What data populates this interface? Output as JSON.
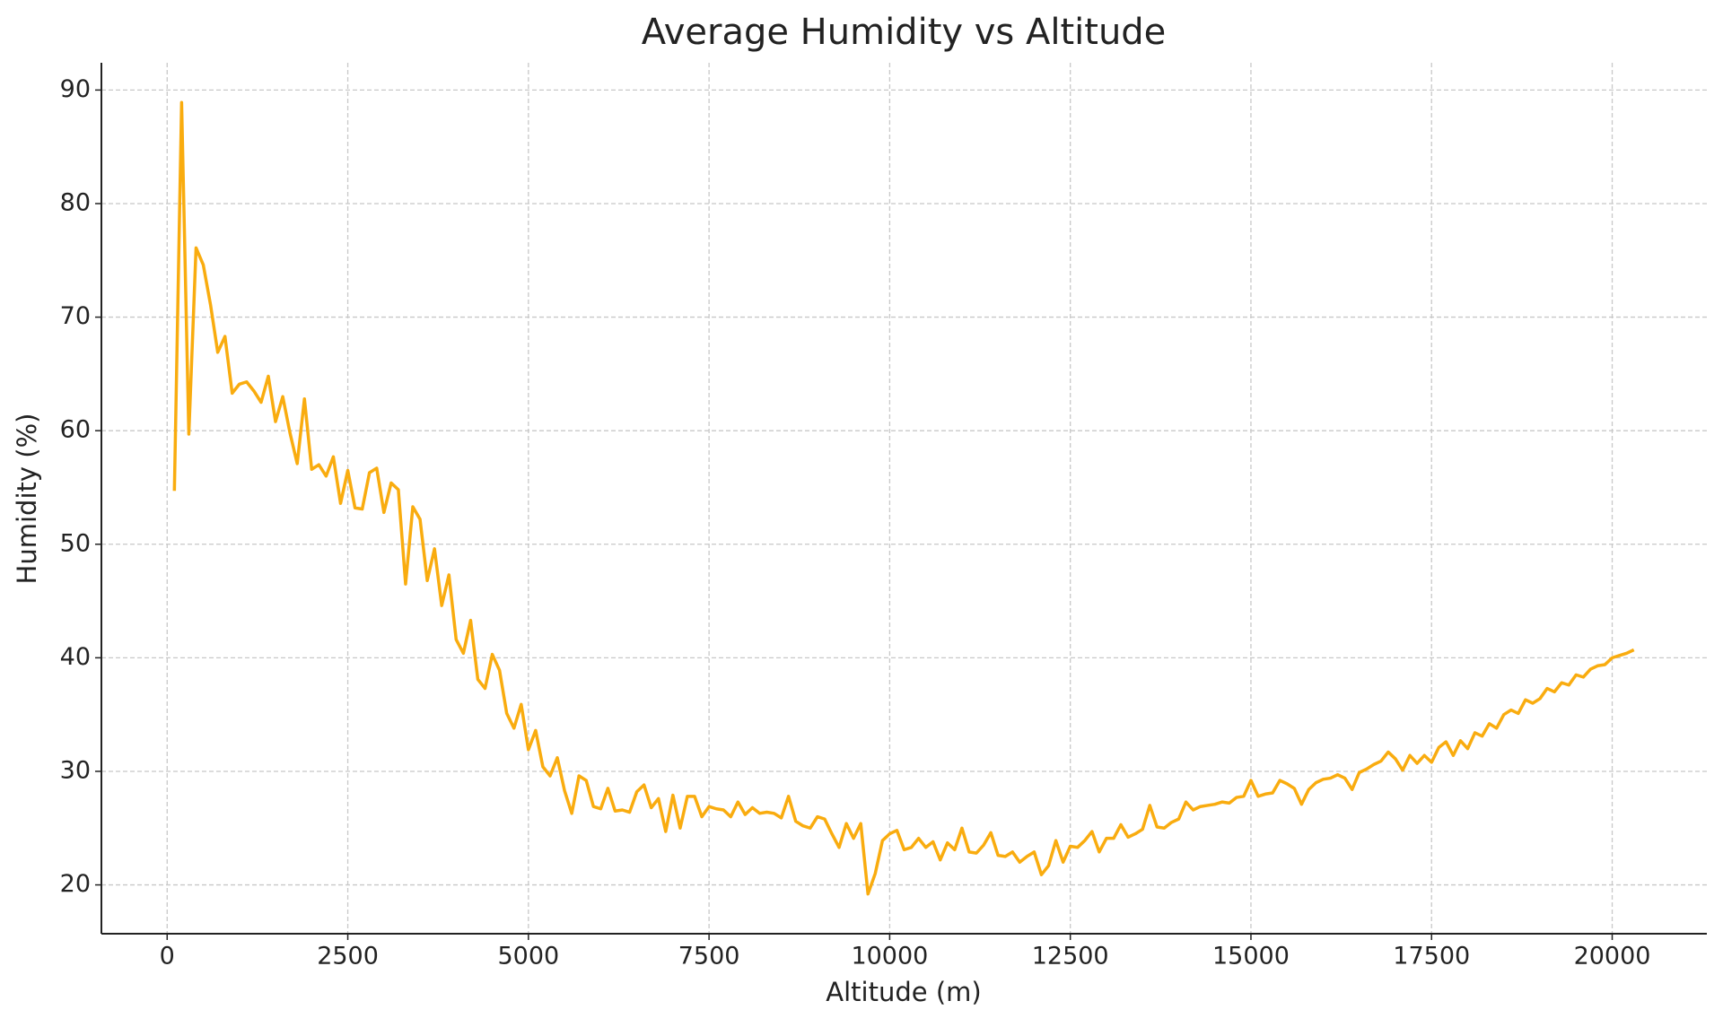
{
  "chart_data": {
    "type": "line",
    "title": "Average Humidity vs Altitude",
    "x_label": "Altitude (m)",
    "y_label": "Humidity (%)",
    "x": [
      100,
      200,
      300,
      400,
      500,
      600,
      700,
      800,
      900,
      1000,
      1100,
      1200,
      1300,
      1400,
      1500,
      1600,
      1700,
      1800,
      1900,
      2000,
      2100,
      2200,
      2300,
      2400,
      2500,
      2600,
      2700,
      2800,
      2900,
      3000,
      3100,
      3200,
      3300,
      3400,
      3500,
      3600,
      3700,
      3800,
      3900,
      4000,
      4100,
      4200,
      4300,
      4400,
      4500,
      4600,
      4700,
      4800,
      4900,
      5000,
      5100,
      5200,
      5300,
      5400,
      5500,
      5600,
      5700,
      5800,
      5900,
      6000,
      6100,
      6200,
      6300,
      6400,
      6500,
      6600,
      6700,
      6800,
      6900,
      7000,
      7100,
      7200,
      7300,
      7400,
      7500,
      7600,
      7700,
      7800,
      7900,
      8000,
      8100,
      8200,
      8300,
      8400,
      8500,
      8600,
      8700,
      8800,
      8900,
      9000,
      9100,
      9200,
      9300,
      9400,
      9500,
      9600,
      9700,
      9800,
      9900,
      10000,
      10100,
      10200,
      10300,
      10400,
      10500,
      10600,
      10700,
      10800,
      10900,
      11000,
      11100,
      11200,
      11300,
      11400,
      11500,
      11600,
      11700,
      11800,
      11900,
      12000,
      12100,
      12200,
      12300,
      12400,
      12500,
      12600,
      12700,
      12800,
      12900,
      13000,
      13100,
      13200,
      13300,
      13400,
      13500,
      13600,
      13700,
      13800,
      13900,
      14000,
      14100,
      14200,
      14300,
      14400,
      14500,
      14600,
      14700,
      14800,
      14900,
      15000,
      15100,
      15200,
      15300,
      15400,
      15500,
      15600,
      15700,
      15800,
      15900,
      16000,
      16100,
      16200,
      16300,
      16400,
      16500,
      16600,
      16700,
      16800,
      16900,
      17000,
      17100,
      17200,
      17300,
      17400,
      17500,
      17600,
      17700,
      17800,
      17900,
      18000,
      18100,
      18200,
      18300,
      18400,
      18500,
      18600,
      18700,
      18800,
      18900,
      19000,
      19100,
      19200,
      19300,
      19400,
      19500,
      19600,
      19700,
      19800,
      19900,
      20000,
      20100,
      20200,
      20300
    ],
    "values": [
      54.7,
      88.9,
      59.7,
      76.1,
      74.6,
      71.1,
      66.9,
      68.3,
      63.3,
      64.1,
      64.3,
      63.5,
      62.5,
      64.8,
      60.8,
      63.0,
      59.8,
      57.1,
      62.8,
      56.6,
      57.0,
      56.0,
      57.7,
      53.6,
      56.5,
      53.2,
      53.1,
      56.3,
      56.7,
      52.8,
      55.4,
      54.8,
      46.5,
      53.3,
      52.2,
      46.8,
      49.6,
      44.6,
      47.3,
      41.6,
      40.4,
      43.3,
      38.1,
      37.3,
      40.3,
      38.9,
      35.1,
      33.8,
      35.9,
      31.9,
      33.6,
      30.4,
      29.6,
      31.2,
      28.3,
      26.3,
      29.6,
      29.2,
      26.9,
      26.7,
      28.5,
      26.5,
      26.6,
      26.4,
      28.2,
      28.8,
      26.8,
      27.6,
      24.7,
      27.9,
      25.0,
      27.8,
      27.8,
      26.0,
      26.9,
      26.7,
      26.6,
      26.0,
      27.3,
      26.2,
      26.8,
      26.3,
      26.4,
      26.3,
      25.9,
      27.8,
      25.6,
      25.2,
      25.0,
      26.0,
      25.8,
      24.5,
      23.3,
      25.4,
      24.1,
      25.4,
      19.2,
      21.0,
      23.9,
      24.5,
      24.8,
      23.1,
      23.3,
      24.1,
      23.3,
      23.8,
      22.2,
      23.7,
      23.1,
      25.0,
      22.9,
      22.8,
      23.5,
      24.6,
      22.6,
      22.5,
      22.9,
      22.0,
      22.5,
      22.9,
      20.9,
      21.7,
      23.9,
      22.0,
      23.4,
      23.3,
      23.9,
      24.7,
      22.9,
      24.1,
      24.1,
      25.3,
      24.2,
      24.5,
      24.9,
      27.0,
      25.1,
      25.0,
      25.5,
      25.8,
      27.3,
      26.6,
      26.9,
      27.0,
      27.1,
      27.3,
      27.2,
      27.7,
      27.8,
      29.2,
      27.8,
      28.0,
      28.1,
      29.2,
      28.9,
      28.5,
      27.1,
      28.4,
      29.0,
      29.3,
      29.4,
      29.7,
      29.4,
      28.4,
      29.9,
      30.2,
      30.6,
      30.9,
      31.7,
      31.1,
      30.1,
      31.4,
      30.7,
      31.4,
      30.8,
      32.1,
      32.6,
      31.4,
      32.7,
      32.0,
      33.4,
      33.1,
      34.2,
      33.8,
      35.0,
      35.4,
      35.1,
      36.3,
      36.0,
      36.4,
      37.3,
      37.0,
      37.8,
      37.6,
      38.5,
      38.3,
      39.0,
      39.3,
      39.4,
      40.0,
      40.2,
      40.4,
      40.7
    ],
    "color": "#f9ac0f",
    "xlim": [
      -910,
      21310
    ],
    "xticks": [
      0,
      2500,
      5000,
      7500,
      10000,
      12500,
      15000,
      17500,
      20000
    ],
    "ylim": [
      15.7,
      92.4
    ],
    "yticks": [
      20,
      30,
      40,
      50,
      60,
      70,
      80,
      90
    ],
    "grid": true
  }
}
